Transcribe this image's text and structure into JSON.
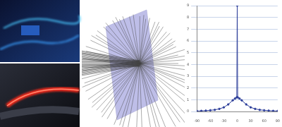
{
  "chart_data": {
    "type": "line",
    "x": [
      -90,
      -80,
      -70,
      -60,
      -50,
      -40,
      -30,
      -20,
      -10,
      -5,
      -1,
      0,
      1,
      5,
      10,
      20,
      30,
      40,
      50,
      60,
      70,
      80,
      90
    ],
    "values": [
      0.04,
      0.05,
      0.07,
      0.1,
      0.14,
      0.22,
      0.35,
      0.6,
      0.95,
      1.1,
      1.2,
      9,
      1.2,
      1.1,
      0.95,
      0.6,
      0.35,
      0.22,
      0.14,
      0.1,
      0.07,
      0.05,
      0.04
    ],
    "color": "#2e3f9a",
    "xlim": [
      -90,
      90
    ],
    "xticks": [
      -90,
      -60,
      -30,
      0,
      30,
      60,
      90
    ],
    "ylim": [
      0,
      9
    ],
    "yticks": [
      0,
      1,
      2,
      3,
      4,
      5,
      6,
      7,
      8,
      9
    ],
    "grid": true
  }
}
